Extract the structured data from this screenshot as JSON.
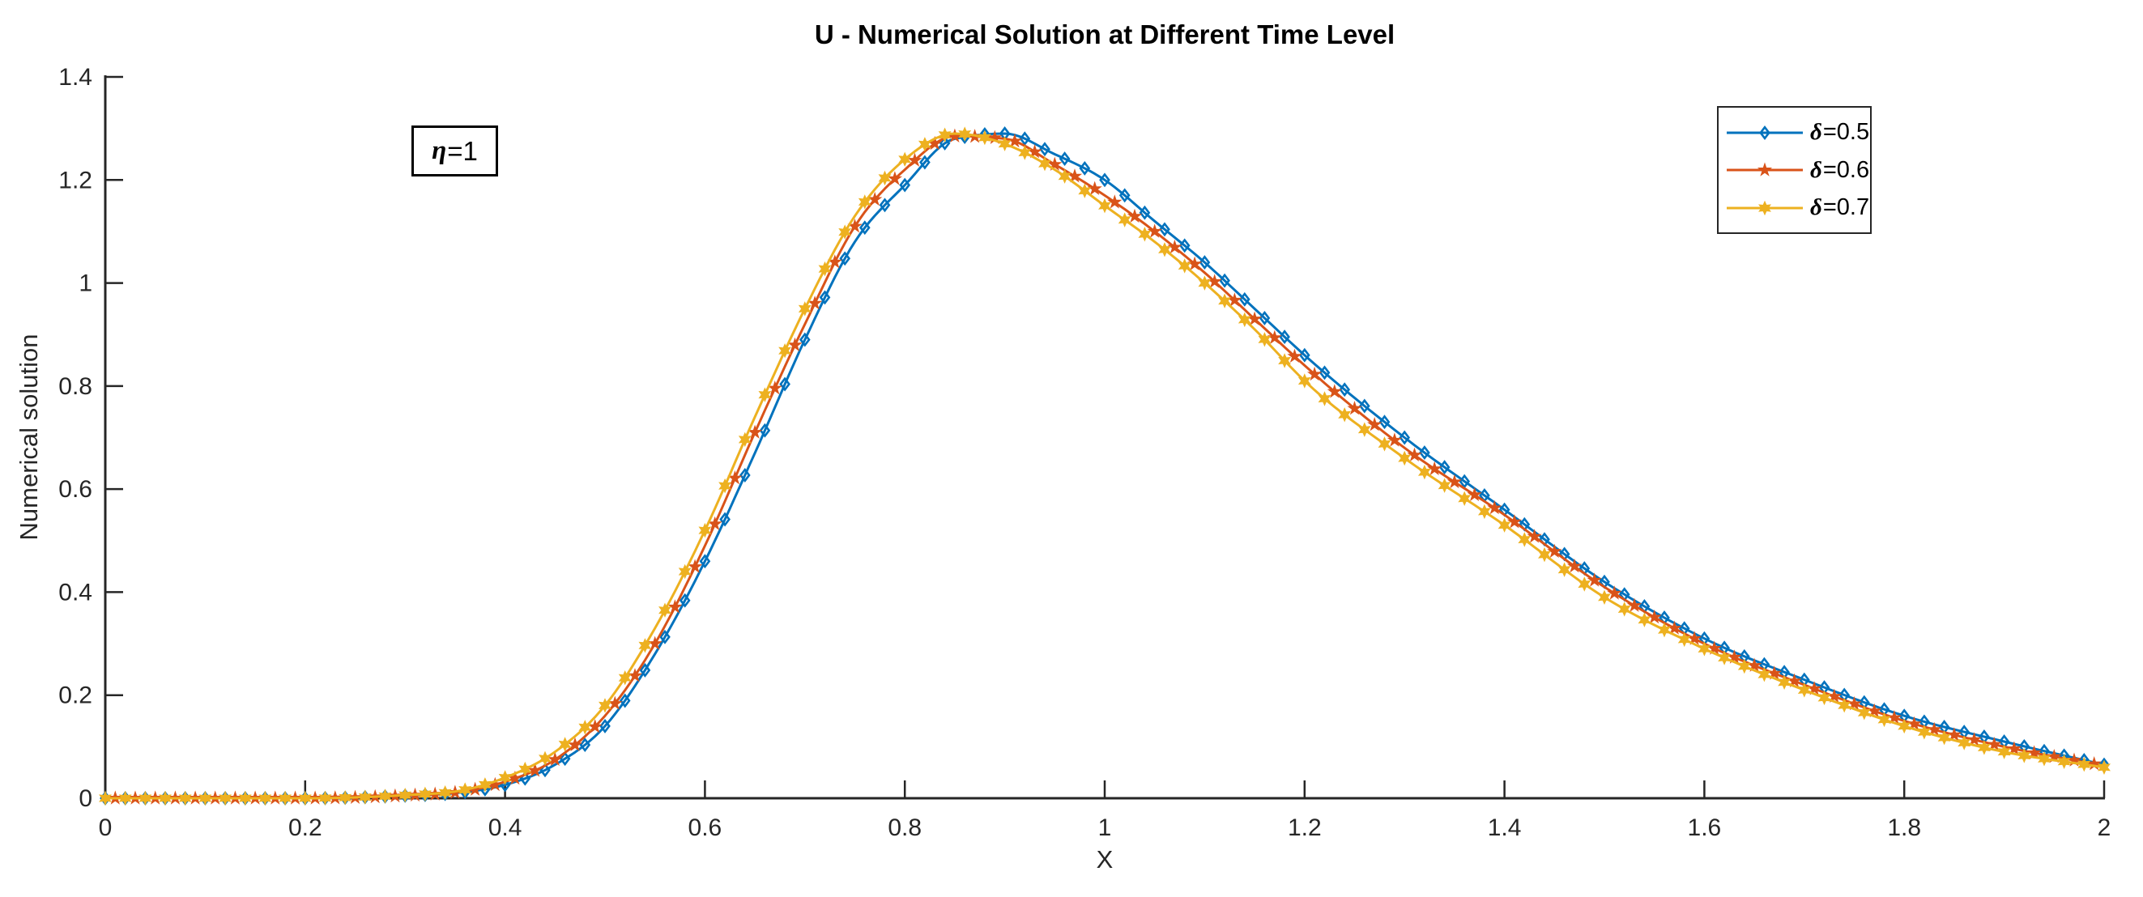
{
  "title": "U - Numerical Solution at Different Time Level",
  "annotation": {
    "symbol": "η",
    "value": "=1"
  },
  "legend": {
    "entries": [
      {
        "symbol": "δ",
        "value": "=0.5"
      },
      {
        "symbol": "δ",
        "value": "=0.6"
      },
      {
        "symbol": "δ",
        "value": "=0.7"
      }
    ]
  },
  "chart_data": {
    "type": "line",
    "title": "U - Numerical Solution at Different Time Level",
    "xlabel": "X",
    "ylabel": "Numerical solution",
    "xlim": [
      0,
      2
    ],
    "ylim": [
      0,
      1.4
    ],
    "grid": false,
    "legend_position": "top-right-inside",
    "axis_color": "#262626",
    "x_ticks": [
      0,
      0.2,
      0.4,
      0.6,
      0.8,
      1,
      1.2,
      1.4,
      1.6,
      1.8,
      2
    ],
    "x_tick_labels": [
      "0",
      "0.2",
      "0.4",
      "0.6",
      "0.8",
      "1",
      "1.2",
      "1.4",
      "1.6",
      "1.8",
      "2"
    ],
    "y_ticks": [
      0,
      0.2,
      0.4,
      0.6,
      0.8,
      1,
      1.2,
      1.4
    ],
    "y_tick_labels": [
      "0",
      "0.2",
      "0.4",
      "0.6",
      "0.8",
      "1",
      "1.2",
      "1.4"
    ],
    "marker_interval": 0.02,
    "x": [
      0,
      0.1,
      0.2,
      0.3,
      0.35,
      0.4,
      0.45,
      0.5,
      0.55,
      0.6,
      0.65,
      0.7,
      0.75,
      0.8,
      0.85,
      0.9,
      0.95,
      1.0,
      1.05,
      1.1,
      1.15,
      1.2,
      1.3,
      1.4,
      1.5,
      1.6,
      1.7,
      1.8,
      1.9,
      2.0
    ],
    "series": [
      {
        "name": "δ=0.5",
        "color": "#0072BD",
        "marker": "diamond",
        "marker_x_offset": 0,
        "values": [
          0,
          0,
          0,
          0.005,
          0.01,
          0.026,
          0.065,
          0.14,
          0.28,
          0.46,
          0.67,
          0.89,
          1.08,
          1.19,
          1.28,
          1.29,
          1.25,
          1.2,
          1.12,
          1.04,
          0.95,
          0.86,
          0.7,
          0.56,
          0.42,
          0.31,
          0.23,
          0.16,
          0.11,
          0.065
        ]
      },
      {
        "name": "δ=0.6",
        "color": "#D95319",
        "marker": "pentagram",
        "marker_x_offset": 0.01,
        "values": [
          0,
          0,
          0,
          0.005,
          0.011,
          0.032,
          0.075,
          0.16,
          0.3,
          0.49,
          0.71,
          0.92,
          1.11,
          1.22,
          1.285,
          1.28,
          1.23,
          1.17,
          1.1,
          1.02,
          0.93,
          0.84,
          0.68,
          0.55,
          0.41,
          0.3,
          0.22,
          0.15,
          0.1,
          0.063
        ]
      },
      {
        "name": "δ=0.7",
        "color": "#EDB120",
        "marker": "hexagram",
        "marker_x_offset": 0,
        "values": [
          0,
          0,
          0,
          0.006,
          0.013,
          0.04,
          0.09,
          0.18,
          0.33,
          0.52,
          0.74,
          0.95,
          1.13,
          1.24,
          1.29,
          1.27,
          1.22,
          1.15,
          1.08,
          1.0,
          0.91,
          0.81,
          0.66,
          0.53,
          0.39,
          0.29,
          0.21,
          0.14,
          0.09,
          0.06
        ]
      }
    ]
  }
}
